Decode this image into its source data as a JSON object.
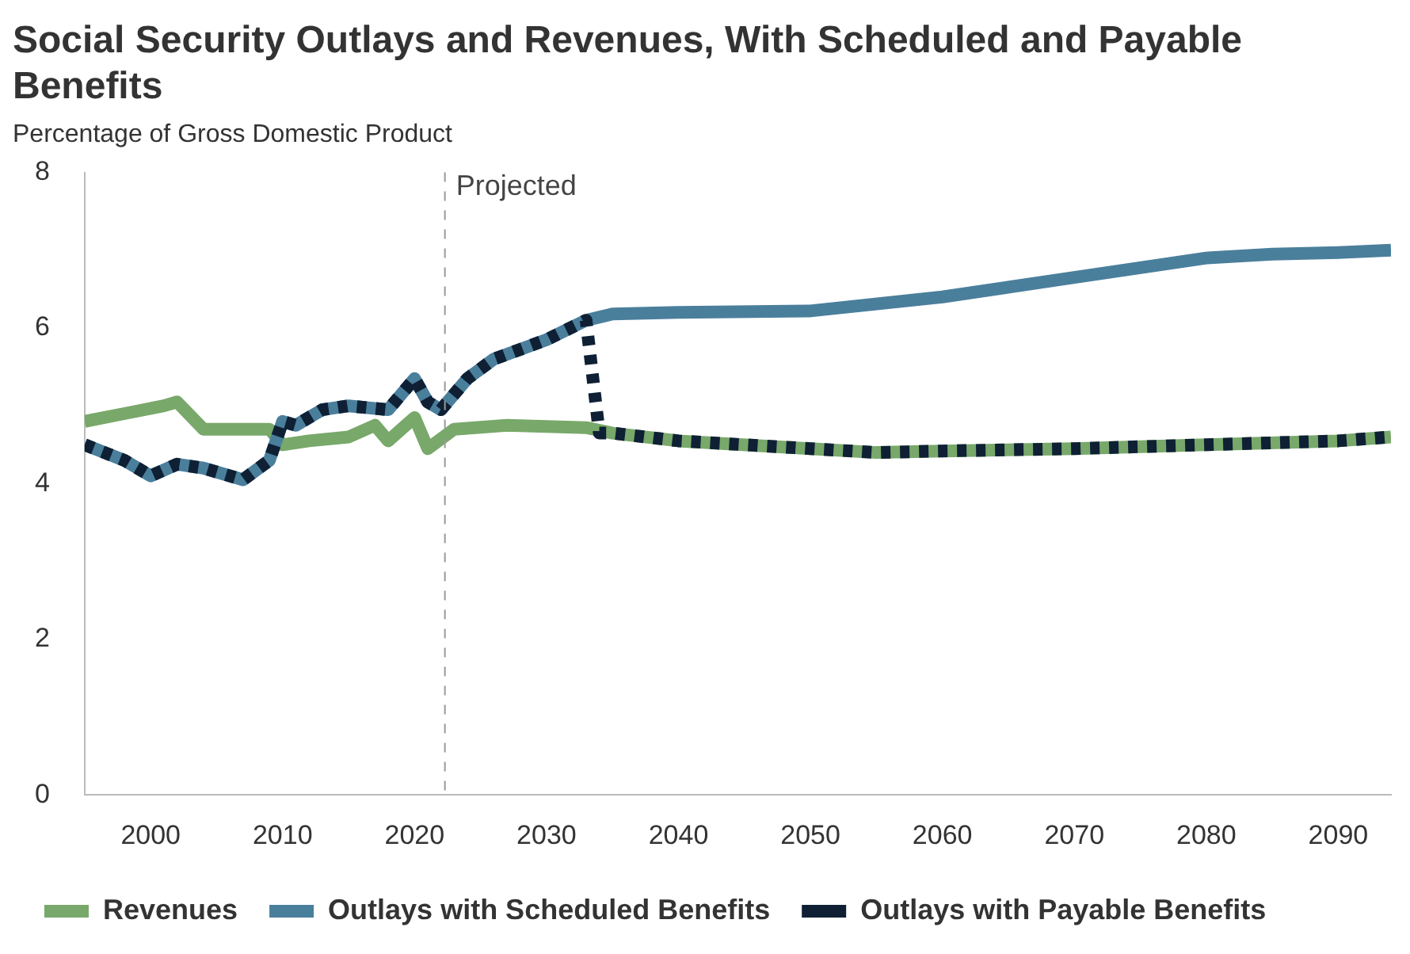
{
  "chart_data": {
    "type": "line",
    "title": "Social Security Outlays and Revenues, With Scheduled and Payable Benefits",
    "subtitle": "Percentage of Gross Domestic Product",
    "xlim": [
      1995,
      2094
    ],
    "xticks": [
      2000,
      2010,
      2020,
      2030,
      2040,
      2050,
      2060,
      2070,
      2080,
      2090
    ],
    "ylim": [
      0,
      8
    ],
    "yticks": [
      0,
      2,
      4,
      6,
      8
    ],
    "grid": false,
    "legend": "bottom",
    "ref_lines": [
      {
        "axis": "x",
        "value": 2022.3,
        "label": "Projected",
        "color": "#999999",
        "line_style": "dashed"
      }
    ],
    "series": [
      {
        "name": "Revenues",
        "color": "#78a86a",
        "line_style": "solid",
        "x": [
          1995,
          1998,
          2001,
          2002,
          2004,
          2009,
          2010,
          2012,
          2015,
          2017,
          2018,
          2020,
          2021,
          2023,
          2027,
          2033,
          2035,
          2040,
          2050,
          2055,
          2060,
          2070,
          2080,
          2090,
          2094
        ],
        "values": [
          4.8,
          4.9,
          5.0,
          5.05,
          4.7,
          4.7,
          4.5,
          4.55,
          4.6,
          4.75,
          4.55,
          4.85,
          4.45,
          4.7,
          4.75,
          4.72,
          4.65,
          4.55,
          4.45,
          4.4,
          4.42,
          4.45,
          4.5,
          4.55,
          4.6
        ]
      },
      {
        "name": "Outlays with Scheduled Benefits",
        "color": "#4a7f9c",
        "line_style": "solid",
        "x": [
          1995,
          1998,
          2000,
          2002,
          2004,
          2007,
          2009,
          2010,
          2011,
          2013,
          2015,
          2018,
          2020,
          2021,
          2022,
          2024,
          2026,
          2030,
          2033,
          2035,
          2040,
          2050,
          2060,
          2070,
          2080,
          2085,
          2090,
          2094
        ],
        "values": [
          4.5,
          4.3,
          4.1,
          4.25,
          4.2,
          4.05,
          4.3,
          4.8,
          4.75,
          4.95,
          5.0,
          4.95,
          5.35,
          5.05,
          4.95,
          5.35,
          5.6,
          5.85,
          6.1,
          6.18,
          6.2,
          6.22,
          6.4,
          6.65,
          6.9,
          6.95,
          6.97,
          7.0
        ]
      },
      {
        "name": "Outlays with Payable Benefits",
        "color": "#0f2035",
        "line_style": "dashed",
        "x": [
          1995,
          1998,
          2000,
          2002,
          2004,
          2007,
          2009,
          2010,
          2011,
          2013,
          2015,
          2018,
          2020,
          2021,
          2022,
          2024,
          2026,
          2030,
          2033,
          2034,
          2035,
          2040,
          2050,
          2055,
          2060,
          2070,
          2080,
          2090,
          2094
        ],
        "values": [
          4.5,
          4.3,
          4.1,
          4.25,
          4.2,
          4.05,
          4.3,
          4.8,
          4.75,
          4.95,
          5.0,
          4.95,
          5.35,
          5.05,
          4.95,
          5.35,
          5.6,
          5.85,
          6.1,
          4.65,
          4.65,
          4.55,
          4.45,
          4.4,
          4.42,
          4.45,
          4.5,
          4.55,
          4.6
        ]
      }
    ]
  }
}
